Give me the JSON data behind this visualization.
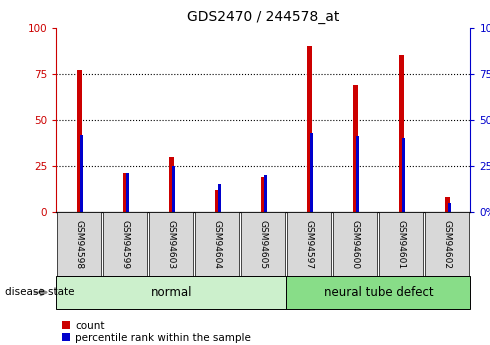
{
  "title": "GDS2470 / 244578_at",
  "samples": [
    "GSM94598",
    "GSM94599",
    "GSM94603",
    "GSM94604",
    "GSM94605",
    "GSM94597",
    "GSM94600",
    "GSM94601",
    "GSM94602"
  ],
  "count_values": [
    77,
    21,
    30,
    12,
    19,
    90,
    69,
    85,
    8
  ],
  "percentile_values": [
    42,
    21,
    25,
    15,
    20,
    43,
    41,
    40,
    5
  ],
  "groups": [
    {
      "label": "normal",
      "start": 0,
      "end": 5,
      "color": "#ccf0cc"
    },
    {
      "label": "neural tube defect",
      "start": 5,
      "end": 9,
      "color": "#88dd88"
    }
  ],
  "disease_label": "disease state",
  "ylim": [
    0,
    100
  ],
  "yticks": [
    0,
    25,
    50,
    75,
    100
  ],
  "left_axis_color": "#cc0000",
  "right_axis_color": "#0000cc",
  "count_color": "#cc0000",
  "percentile_color": "#0000cc",
  "legend_count": "count",
  "legend_percentile": "percentile rank within the sample",
  "tick_label_bg": "#d8d8d8",
  "red_bar_width": 0.12,
  "blue_bar_width": 0.07
}
